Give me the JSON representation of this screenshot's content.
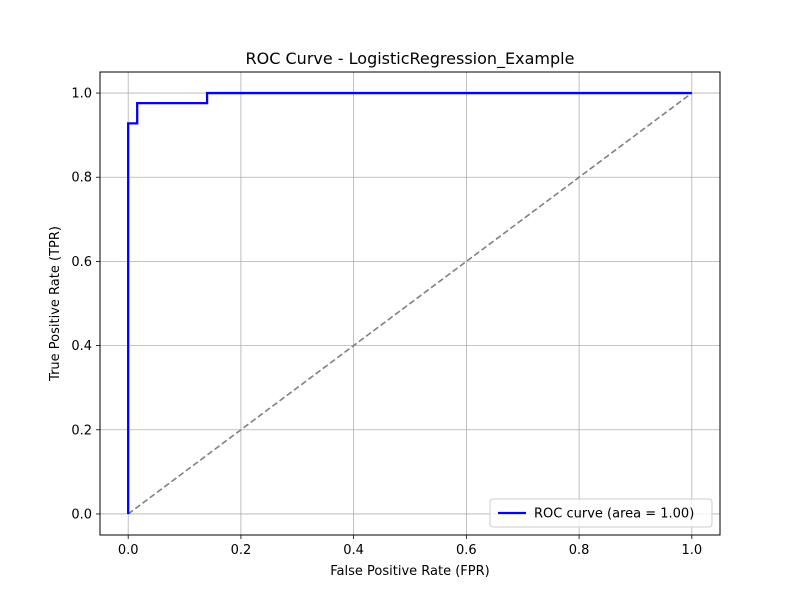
{
  "chart_data": {
    "type": "line",
    "title": "ROC Curve - LogisticRegression_Example",
    "xlabel": "False Positive Rate (FPR)",
    "ylabel": "True Positive Rate (TPR)",
    "xlim": [
      -0.05,
      1.05
    ],
    "ylim": [
      -0.05,
      1.05
    ],
    "xticks": [
      0.0,
      0.2,
      0.4,
      0.6,
      0.8,
      1.0
    ],
    "yticks": [
      0.0,
      0.2,
      0.4,
      0.6,
      0.8,
      1.0
    ],
    "xtick_labels": [
      "0.0",
      "0.2",
      "0.4",
      "0.6",
      "0.8",
      "1.0"
    ],
    "ytick_labels": [
      "0.0",
      "0.2",
      "0.4",
      "0.6",
      "0.8",
      "1.0"
    ],
    "grid": true,
    "legend_position": "lower-right",
    "series": [
      {
        "name": "ROC curve (area = 1.00)",
        "color": "#0000ff",
        "style": "solid",
        "x": [
          0.0,
          0.0,
          0.016,
          0.016,
          0.14,
          0.14,
          1.0
        ],
        "y": [
          0.0,
          0.928,
          0.928,
          0.976,
          0.976,
          1.0,
          1.0
        ]
      },
      {
        "color": "#808080",
        "style": "dashed",
        "x": [
          0.0,
          1.0
        ],
        "y": [
          0.0,
          1.0
        ]
      }
    ]
  }
}
